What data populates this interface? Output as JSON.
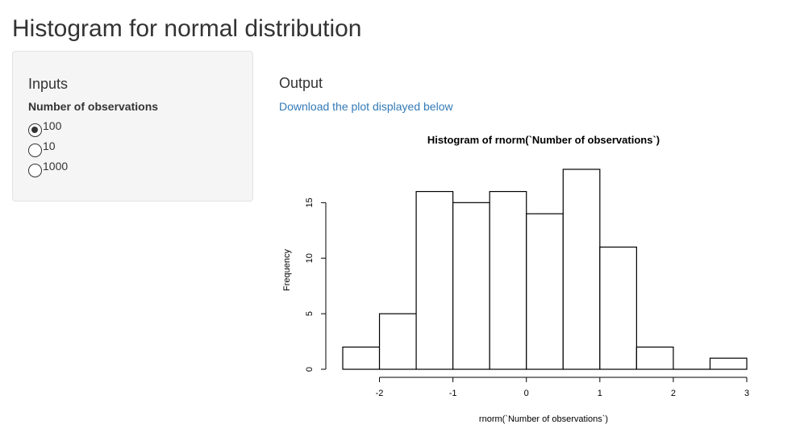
{
  "page": {
    "title": "Histogram for normal distribution"
  },
  "sidebar": {
    "heading": "Inputs",
    "field_label": "Number of observations",
    "options": [
      {
        "label": "100",
        "selected": true
      },
      {
        "label": "10",
        "selected": false
      },
      {
        "label": "1000",
        "selected": false
      }
    ]
  },
  "main": {
    "heading": "Output",
    "download_link": "Download the plot displayed below"
  },
  "chart_data": {
    "type": "bar",
    "title": "Histogram of rnorm(`Number of observations`)",
    "xlabel": "rnorm(`Number of observations`)",
    "ylabel": "Frequency",
    "bin_edges": [
      -2.5,
      -2.0,
      -1.5,
      -1.0,
      -0.5,
      0.0,
      0.5,
      1.0,
      1.5,
      2.0,
      2.5,
      3.0
    ],
    "values": [
      2,
      5,
      16,
      15,
      16,
      14,
      18,
      11,
      2,
      0,
      1
    ],
    "xticks": [
      -2,
      -1,
      0,
      1,
      2,
      3
    ],
    "yticks": [
      0,
      5,
      10,
      15
    ],
    "xlim": [
      -2.5,
      3.0
    ],
    "ylim": [
      0,
      18
    ],
    "grid": false,
    "colors": {
      "bar_fill": "#ffffff",
      "bar_stroke": "#000000"
    }
  }
}
